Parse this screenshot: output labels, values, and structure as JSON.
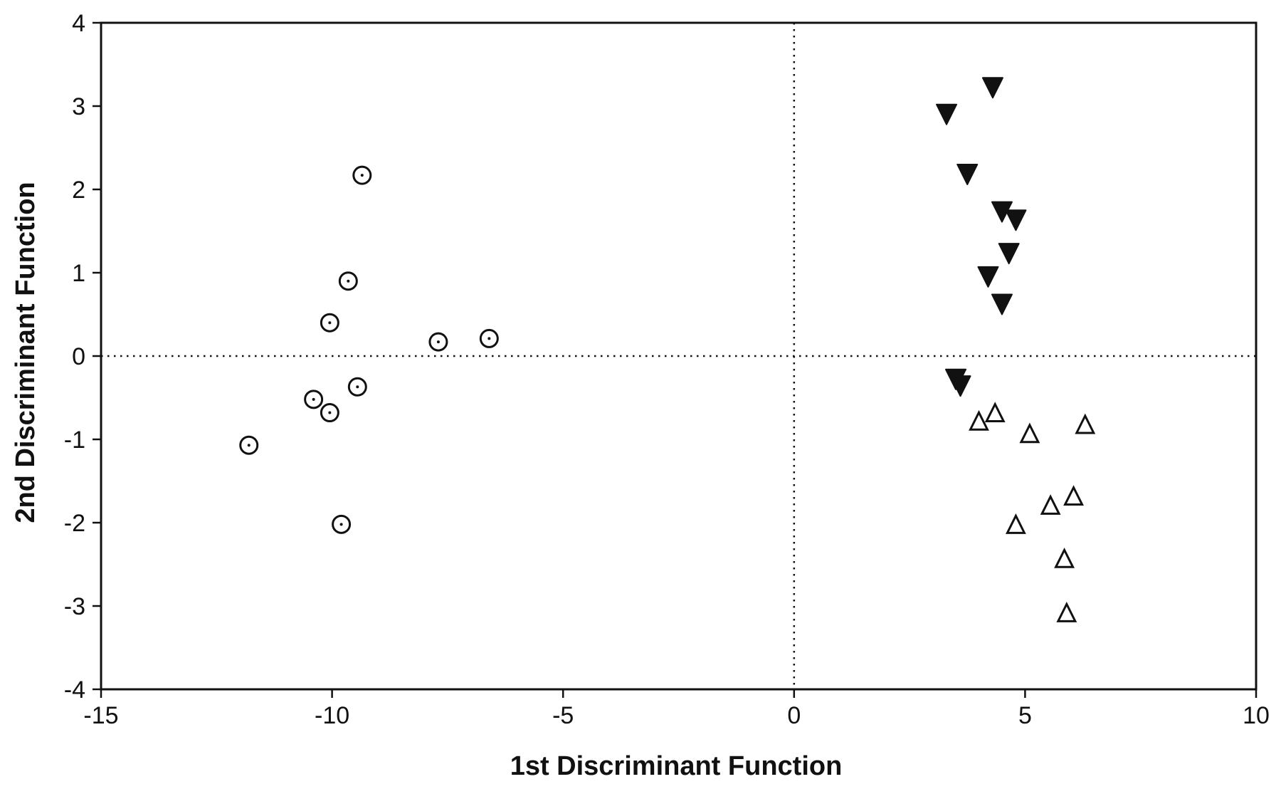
{
  "chart_data": {
    "type": "scatter",
    "title": "",
    "xlabel": "1st Discriminant Function",
    "ylabel": "2nd Discriminant Function",
    "xlim": [
      -15,
      10
    ],
    "ylim": [
      -4,
      4
    ],
    "xticks": [
      -15,
      -10,
      -5,
      0,
      5,
      10
    ],
    "yticks": [
      -4,
      -3,
      -2,
      -1,
      0,
      1,
      2,
      3,
      4
    ],
    "x_tick_labels": [
      "-15",
      "-10",
      "-5",
      "0",
      "5",
      "10"
    ],
    "y_tick_labels": [
      "-4",
      "-3",
      "-2",
      "-1",
      "0",
      "1",
      "2",
      "3",
      "4"
    ],
    "grid": false,
    "reference_lines": {
      "x": 0,
      "y": 0,
      "style": "dotted"
    },
    "legend": "none",
    "series": [
      {
        "marker": "circle-dot",
        "color": "#111111",
        "points": [
          {
            "x": -9.35,
            "y": 2.17
          },
          {
            "x": -9.65,
            "y": 0.9
          },
          {
            "x": -10.05,
            "y": 0.4
          },
          {
            "x": -7.7,
            "y": 0.17
          },
          {
            "x": -6.6,
            "y": 0.21
          },
          {
            "x": -9.45,
            "y": -0.37
          },
          {
            "x": -10.4,
            "y": -0.52
          },
          {
            "x": -10.05,
            "y": -0.68
          },
          {
            "x": -11.8,
            "y": -1.07
          },
          {
            "x": -9.8,
            "y": -2.02
          }
        ]
      },
      {
        "marker": "triangle-down-filled",
        "color": "#111111",
        "points": [
          {
            "x": 4.3,
            "y": 3.22
          },
          {
            "x": 3.3,
            "y": 2.9
          },
          {
            "x": 3.75,
            "y": 2.18
          },
          {
            "x": 4.5,
            "y": 1.73
          },
          {
            "x": 4.8,
            "y": 1.63
          },
          {
            "x": 4.65,
            "y": 1.23
          },
          {
            "x": 4.2,
            "y": 0.95
          },
          {
            "x": 4.5,
            "y": 0.62
          },
          {
            "x": 3.5,
            "y": -0.28
          },
          {
            "x": 3.6,
            "y": -0.36
          }
        ]
      },
      {
        "marker": "triangle-up-open",
        "color": "#111111",
        "points": [
          {
            "x": 4.35,
            "y": -0.68
          },
          {
            "x": 4.0,
            "y": -0.78
          },
          {
            "x": 5.1,
            "y": -0.93
          },
          {
            "x": 6.3,
            "y": -0.82
          },
          {
            "x": 6.05,
            "y": -1.68
          },
          {
            "x": 5.55,
            "y": -1.79
          },
          {
            "x": 4.8,
            "y": -2.02
          },
          {
            "x": 5.85,
            "y": -2.43
          },
          {
            "x": 5.9,
            "y": -3.08
          }
        ]
      }
    ]
  }
}
